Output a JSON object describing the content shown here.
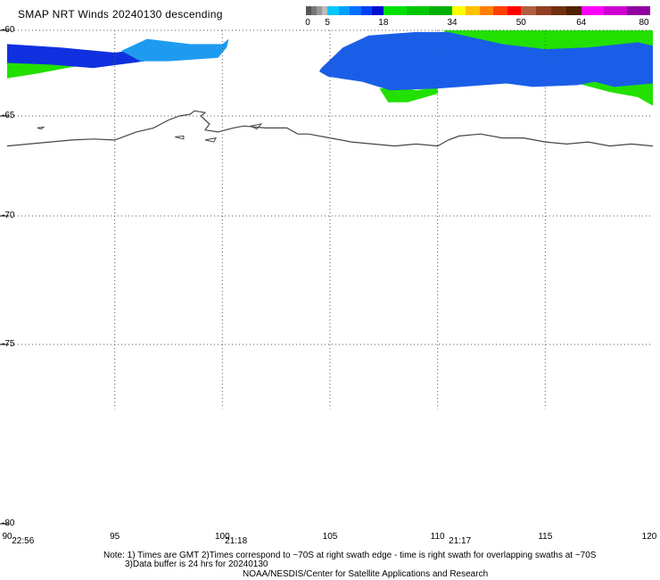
{
  "title": "SMAP NRT Winds  20240130 descending",
  "colorbar": {
    "labels": [
      "0",
      "5",
      "18",
      "34",
      "50",
      "64",
      "80"
    ],
    "label_values": [
      0,
      5,
      18,
      34,
      50,
      64,
      80
    ],
    "segments": [
      {
        "from": 0,
        "to": 5,
        "colors": [
          "#555555",
          "#777777",
          "#999999",
          "#bbbbbb"
        ]
      },
      {
        "from": 5,
        "to": 18,
        "colors": [
          "#00c8ff",
          "#00a0ff",
          "#0070ff",
          "#0040f0",
          "#0010d0"
        ]
      },
      {
        "from": 18,
        "to": 34,
        "colors": [
          "#00e000",
          "#00c800",
          "#00b000"
        ]
      },
      {
        "from": 34,
        "to": 50,
        "colors": [
          "#ffff00",
          "#ffc000",
          "#ff8000",
          "#ff4000",
          "#ff0000"
        ]
      },
      {
        "from": 50,
        "to": 64,
        "colors": [
          "#b06040",
          "#904020",
          "#703010",
          "#502000"
        ]
      },
      {
        "from": 64,
        "to": 80,
        "colors": [
          "#ff00ff",
          "#d000d0",
          "#9000a0"
        ]
      }
    ]
  },
  "map": {
    "lon_range": [
      90,
      120
    ],
    "lat_range": [
      -60,
      -80
    ],
    "lat_labels": [
      "-60",
      "-65",
      "-70",
      "-75",
      "-80"
    ],
    "lat_values": [
      -60,
      -65,
      -70,
      -75,
      -80
    ],
    "lon_labels": [
      "90",
      "95",
      "100",
      "105",
      "110",
      "115",
      "120"
    ],
    "lon_values": [
      90,
      95,
      100,
      105,
      110,
      115,
      120
    ],
    "time_labels": [
      {
        "text": "22:56",
        "lon": 90.3
      },
      {
        "text": "21:18",
        "lon": 100.2
      },
      {
        "text": "21:17",
        "lon": 110.6
      }
    ],
    "colors": {
      "grid": "#555555",
      "coastline": "#444444",
      "wind_blue_light": "#1e9bf0",
      "wind_blue_mid": "#1a5ee8",
      "wind_blue_dark": "#1030e0",
      "wind_green": "#22e000"
    },
    "coastline": [
      [
        90,
        -66.5
      ],
      [
        91,
        -66.4
      ],
      [
        92,
        -66.3
      ],
      [
        93,
        -66.2
      ],
      [
        94,
        -66.15
      ],
      [
        95,
        -66.2
      ],
      [
        95.5,
        -66.0
      ],
      [
        96,
        -65.8
      ],
      [
        96.8,
        -65.6
      ],
      [
        97.5,
        -65.2
      ],
      [
        98,
        -65.0
      ],
      [
        98.5,
        -64.9
      ],
      [
        98.7,
        -64.7
      ],
      [
        99.2,
        -64.8
      ],
      [
        99.0,
        -65.0
      ],
      [
        99.4,
        -65.4
      ],
      [
        99.2,
        -65.7
      ],
      [
        99.8,
        -65.8
      ],
      [
        100.5,
        -65.6
      ],
      [
        101,
        -65.5
      ],
      [
        102,
        -65.6
      ],
      [
        103,
        -65.6
      ],
      [
        103.5,
        -65.9
      ],
      [
        104,
        -65.9
      ],
      [
        105,
        -66.1
      ],
      [
        106,
        -66.3
      ],
      [
        107,
        -66.4
      ],
      [
        108,
        -66.5
      ],
      [
        109,
        -66.4
      ],
      [
        110,
        -66.5
      ],
      [
        110.5,
        -66.2
      ],
      [
        111,
        -66.0
      ],
      [
        112,
        -65.9
      ],
      [
        113,
        -66.1
      ],
      [
        114,
        -66.1
      ],
      [
        115,
        -66.3
      ],
      [
        116,
        -66.4
      ],
      [
        117,
        -66.3
      ],
      [
        118,
        -66.5
      ],
      [
        119,
        -66.4
      ],
      [
        120,
        -66.5
      ]
    ],
    "coastline_extras": [
      [
        [
          91.4,
          -65.6
        ],
        [
          91.7,
          -65.55
        ],
        [
          91.6,
          -65.65
        ],
        [
          91.4,
          -65.6
        ]
      ],
      [
        [
          97.8,
          -66.05
        ],
        [
          98.2,
          -66.0
        ],
        [
          98.2,
          -66.15
        ],
        [
          97.8,
          -66.05
        ]
      ],
      [
        [
          99.2,
          -66.2
        ],
        [
          99.7,
          -66.1
        ],
        [
          99.6,
          -66.3
        ],
        [
          99.2,
          -66.2
        ]
      ],
      [
        [
          101.3,
          -65.5
        ],
        [
          101.8,
          -65.4
        ],
        [
          101.6,
          -65.65
        ],
        [
          101.3,
          -65.5
        ]
      ]
    ],
    "swaths": [
      {
        "color_key": "wind_green",
        "poly": [
          [
            90,
            -61.0
          ],
          [
            91.5,
            -61.3
          ],
          [
            93.7,
            -61.5
          ],
          [
            93.2,
            -62.1
          ],
          [
            91.5,
            -62.5
          ],
          [
            90,
            -62.8
          ]
        ]
      },
      {
        "color_key": "wind_blue_dark",
        "poly": [
          [
            90,
            -60.8
          ],
          [
            92.5,
            -61.0
          ],
          [
            95,
            -61.3
          ],
          [
            96.2,
            -61.1
          ],
          [
            96.4,
            -61.8
          ],
          [
            94,
            -62.2
          ],
          [
            92,
            -62.0
          ],
          [
            90,
            -61.9
          ]
        ]
      },
      {
        "color_key": "wind_blue_light",
        "poly": [
          [
            95.3,
            -61.2
          ],
          [
            96.5,
            -60.5
          ],
          [
            98.5,
            -60.8
          ],
          [
            100,
            -60.8
          ],
          [
            100.3,
            -60.5
          ],
          [
            100.2,
            -61.0
          ],
          [
            99.8,
            -61.6
          ],
          [
            97.5,
            -61.8
          ],
          [
            96.2,
            -61.8
          ]
        ]
      },
      {
        "color_key": "wind_green",
        "poly": [
          [
            107.3,
            -63.4
          ],
          [
            108.2,
            -63.3
          ],
          [
            109.0,
            -63.5
          ],
          [
            110.0,
            -63.3
          ],
          [
            110.0,
            -63.7
          ],
          [
            108.6,
            -64.2
          ],
          [
            107.7,
            -64.2
          ]
        ]
      },
      {
        "color_key": "wind_green",
        "poly": [
          [
            110.3,
            -60.0
          ],
          [
            120,
            -60.0
          ],
          [
            120,
            -64.4
          ],
          [
            119.3,
            -63.9
          ],
          [
            118.0,
            -63.6
          ],
          [
            116.5,
            -63.1
          ],
          [
            114,
            -63.2
          ],
          [
            111.5,
            -62.9
          ],
          [
            110.8,
            -62.6
          ]
        ]
      },
      {
        "color_key": "wind_blue_mid",
        "poly": [
          [
            104.6,
            -62.2
          ],
          [
            105.6,
            -61.0
          ],
          [
            106.8,
            -60.3
          ],
          [
            109,
            -60.1
          ],
          [
            110.5,
            -60.1
          ],
          [
            113,
            -60.8
          ],
          [
            115,
            -61.1
          ],
          [
            117,
            -61.0
          ],
          [
            119.3,
            -60.7
          ],
          [
            120,
            -60.9
          ],
          [
            120,
            -63.1
          ],
          [
            118.2,
            -63.3
          ],
          [
            117.3,
            -63.0
          ],
          [
            116.5,
            -63.2
          ],
          [
            114.4,
            -63.3
          ],
          [
            113.2,
            -63.1
          ],
          [
            110.0,
            -63.4
          ],
          [
            107.8,
            -63.5
          ],
          [
            107.0,
            -63.2
          ],
          [
            106.5,
            -63.0
          ],
          [
            104.9,
            -62.7
          ],
          [
            104.5,
            -62.4
          ]
        ]
      }
    ]
  },
  "note_line1": "Note: 1) Times are GMT 2)Times correspond to ~70S at right swath edge - time is right swath for overlapping swaths at ~70S",
  "note_line2": "3)Data buffer is 24 hrs for 20240130",
  "credit": "NOAA/NESDIS/Center for Satellite Applications and Research"
}
